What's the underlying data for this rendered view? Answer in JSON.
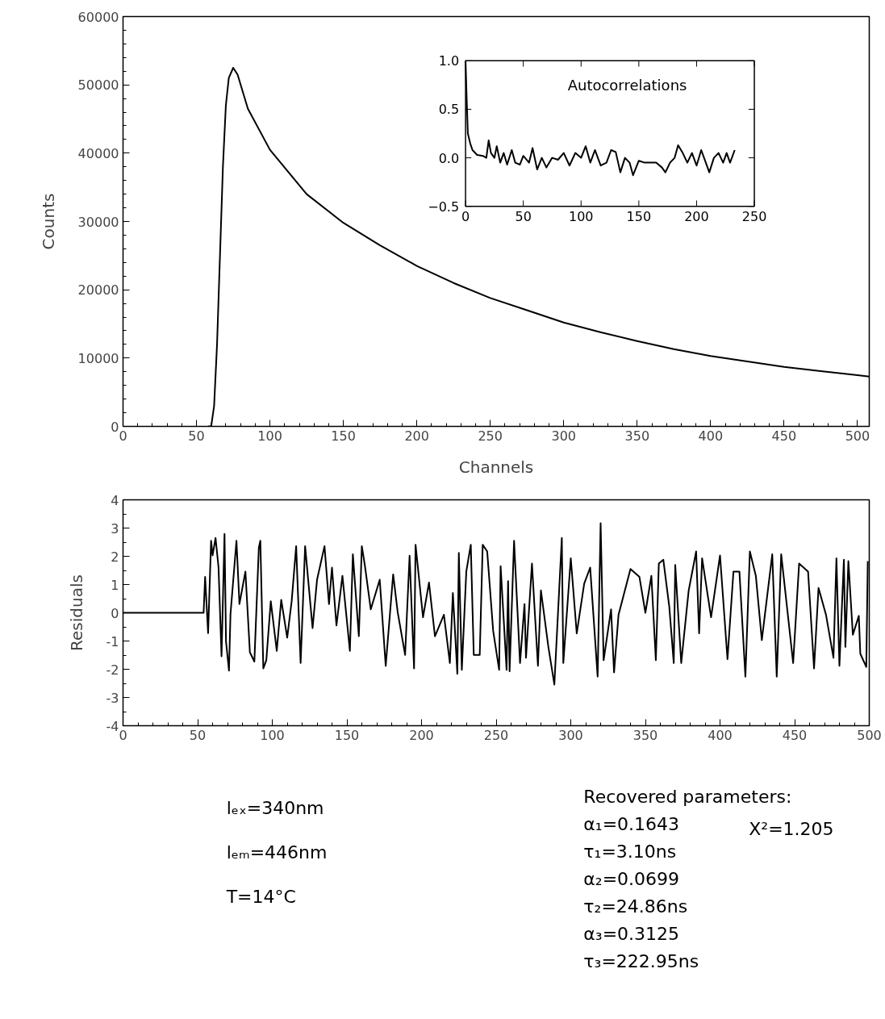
{
  "chart_data": [
    {
      "type": "line",
      "xlabel": "Channels",
      "ylabel": "Counts",
      "color": "#000000",
      "x": [
        58,
        60,
        62,
        64,
        66,
        68,
        70,
        72,
        75,
        78,
        85,
        100,
        125,
        150,
        175,
        200,
        225,
        250,
        275,
        300,
        325,
        350,
        375,
        400,
        425,
        450,
        475,
        500,
        508
      ],
      "values": [
        0,
        0,
        3000,
        12000,
        25000,
        38000,
        47000,
        51000,
        52500,
        51500,
        46500,
        40500,
        34000,
        29800,
        26500,
        23500,
        21000,
        18800,
        17000,
        15200,
        13800,
        12500,
        11300,
        10300,
        9500,
        8700,
        8100,
        7500,
        7300
      ],
      "xlim": [
        0,
        508
      ],
      "ylim": [
        0,
        60000
      ],
      "xticks": [
        0,
        50,
        100,
        150,
        200,
        250,
        300,
        350,
        400,
        450,
        500
      ],
      "yticks": [
        0,
        10000,
        20000,
        30000,
        40000,
        50000,
        60000
      ]
    },
    {
      "type": "line",
      "title": "Autocorrelations",
      "color": "#000000",
      "x": [
        0,
        1,
        2,
        4,
        6,
        10,
        15,
        18,
        20,
        22,
        25,
        27,
        30,
        33,
        36,
        40,
        43,
        47,
        50,
        55,
        58,
        62,
        66,
        70,
        75,
        80,
        85,
        90,
        95,
        100,
        104,
        108,
        112,
        117,
        122,
        126,
        130,
        134,
        138,
        142,
        145,
        150,
        155,
        160,
        165,
        170,
        173,
        177,
        181,
        184,
        188,
        192,
        196,
        200,
        204,
        208,
        211,
        215,
        219,
        223,
        226,
        229,
        233
      ],
      "values": [
        1.0,
        0.6,
        0.25,
        0.15,
        0.08,
        0.03,
        0.02,
        0.0,
        0.18,
        0.05,
        0.0,
        0.12,
        -0.05,
        0.05,
        -0.07,
        0.08,
        -0.05,
        -0.07,
        0.02,
        -0.05,
        0.1,
        -0.12,
        0.0,
        -0.1,
        0.0,
        -0.02,
        0.05,
        -0.08,
        0.05,
        0.0,
        0.12,
        -0.05,
        0.08,
        -0.08,
        -0.05,
        0.08,
        0.06,
        -0.15,
        0.0,
        -0.05,
        -0.18,
        -0.03,
        -0.05,
        -0.05,
        -0.05,
        -0.1,
        -0.15,
        -0.05,
        0.0,
        0.13,
        0.05,
        -0.05,
        0.05,
        -0.08,
        0.08,
        -0.05,
        -0.15,
        0.0,
        0.05,
        -0.05,
        0.05,
        -0.05,
        0.08
      ],
      "xlim": [
        0,
        250
      ],
      "ylim": [
        -0.5,
        1.0
      ],
      "xticks": [
        0,
        50,
        100,
        150,
        200,
        250
      ],
      "yticks": [
        {
          "value": -0.5,
          "label": "−0.5"
        },
        {
          "value": 0,
          "label": "0.0"
        },
        {
          "value": 0.5,
          "label": "0.5"
        },
        {
          "value": 1.0,
          "label": "1.0"
        }
      ]
    },
    {
      "type": "line",
      "ylabel": "Residuals",
      "color": "#000000",
      "x": [
        0,
        54,
        55,
        57,
        59,
        60,
        62,
        64,
        66,
        68,
        69,
        71,
        72,
        76,
        78,
        82,
        85,
        88,
        91,
        92,
        94,
        96,
        99,
        103,
        106,
        110,
        113,
        116,
        119,
        122,
        127,
        130,
        135,
        138,
        140,
        143,
        147,
        152,
        154,
        158,
        160,
        162,
        166,
        172,
        176,
        181,
        184,
        189,
        192,
        195,
        196,
        201,
        205,
        209,
        215,
        219,
        221,
        224,
        225,
        227,
        230,
        233,
        235,
        239,
        241,
        244,
        248,
        252,
        253,
        257,
        258,
        259,
        262,
        266,
        269,
        270,
        274,
        278,
        280,
        285,
        289,
        294,
        295,
        300,
        304,
        309,
        313,
        318,
        320,
        322,
        327,
        329,
        332,
        340,
        346,
        350,
        354,
        357,
        359,
        362,
        366,
        369,
        370,
        374,
        379,
        384,
        386,
        388,
        394,
        400,
        405,
        409,
        413,
        417,
        420,
        424,
        428,
        435,
        438,
        441,
        449,
        453,
        459,
        463,
        466,
        471,
        476,
        478,
        480,
        483,
        484,
        486,
        489,
        493,
        494,
        498,
        499
      ],
      "values": [
        0,
        0,
        1.27,
        -0.72,
        2.55,
        2.03,
        2.65,
        1.6,
        -1.54,
        2.79,
        -1.02,
        -2.05,
        -0.05,
        2.55,
        0.31,
        1.46,
        -1.4,
        -1.73,
        2.31,
        2.55,
        -1.97,
        -1.68,
        0.41,
        -1.35,
        0.46,
        -0.88,
        0.41,
        2.36,
        -1.78,
        2.36,
        -0.54,
        1.17,
        2.36,
        0.31,
        1.6,
        -0.45,
        1.31,
        -1.35,
        2.07,
        -0.83,
        2.36,
        1.69,
        0.12,
        1.17,
        -1.88,
        1.36,
        0.03,
        -1.49,
        2.02,
        -1.97,
        2.41,
        -0.16,
        1.07,
        -0.83,
        -0.07,
        -1.78,
        0.7,
        -2.16,
        2.12,
        -2.02,
        1.46,
        2.41,
        -1.49,
        -1.49,
        2.41,
        2.17,
        -0.64,
        -2.02,
        1.65,
        -2.02,
        1.12,
        -2.07,
        2.55,
        -1.78,
        0.31,
        -1.59,
        1.74,
        -1.88,
        0.79,
        -1.21,
        -2.54,
        2.65,
        -1.78,
        1.93,
        -0.73,
        1.03,
        1.6,
        -2.26,
        3.17,
        -1.68,
        0.12,
        -2.11,
        -0.07,
        1.55,
        1.27,
        0,
        1.31,
        -1.68,
        1.74,
        1.88,
        0.22,
        -1.78,
        1.69,
        -1.78,
        0.79,
        2.17,
        -0.73,
        1.93,
        -0.16,
        2.03,
        -1.64,
        1.46,
        1.46,
        -2.26,
        2.17,
        1.31,
        -0.97,
        2.07,
        -2.26,
        2.07,
        -1.78,
        1.74,
        1.46,
        -1.97,
        0.88,
        -0.07,
        -1.59,
        1.93,
        -1.88,
        1.88,
        -1.21,
        1.83,
        -0.78,
        -0.11,
        -1.45,
        -1.92,
        1.83
      ],
      "xlim": [
        0,
        500
      ],
      "ylim": [
        -4,
        4
      ],
      "xticks": [
        0,
        50,
        100,
        150,
        200,
        250,
        300,
        350,
        400,
        450,
        500
      ],
      "yticks": [
        -4,
        -3,
        -2,
        -1,
        0,
        1,
        2,
        3,
        4
      ]
    },
    {
      "type": "other",
      "annotations": [
        "lₑₓ=340nm",
        "lₑₘ=446nm",
        "T=14°C",
        "Recovered parameters:",
        "α₁=0.1643",
        "τ₁=3.10ns",
        "α₂=0.0699",
        "τ₂=24.86ns",
        "α₃=0.3125",
        "τ₃=222.95ns",
        "X²=1.205"
      ]
    }
  ]
}
